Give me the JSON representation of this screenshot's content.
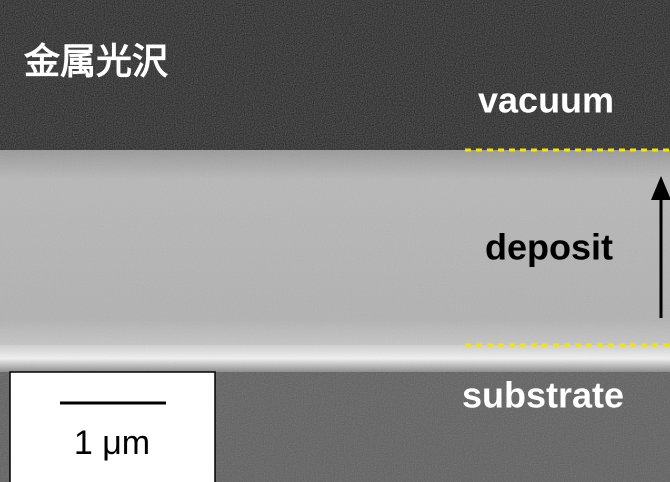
{
  "image": {
    "corner_label": "金属光沢",
    "layers": {
      "top": "vacuum",
      "middle": "deposit",
      "bottom": "substrate"
    },
    "scale_bar": {
      "label": "1 μm"
    }
  }
}
